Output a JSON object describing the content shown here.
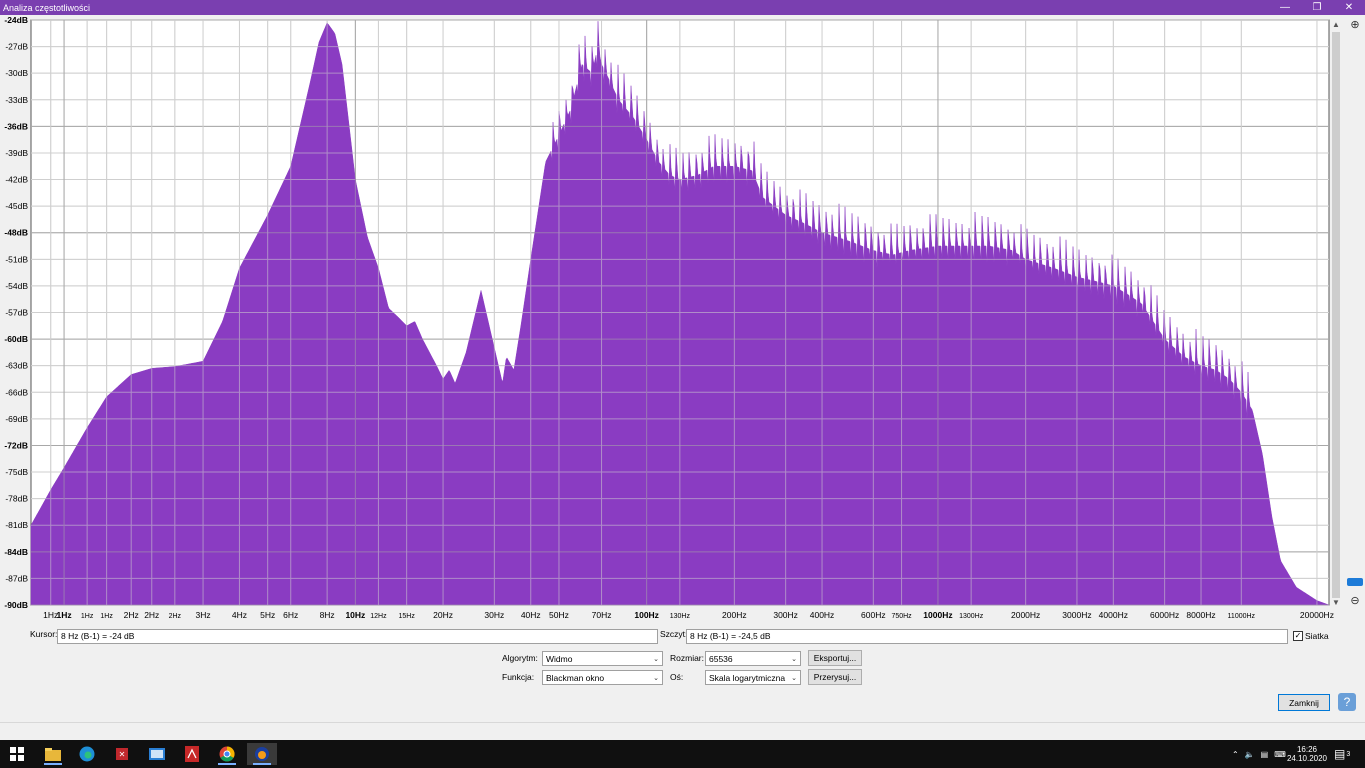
{
  "window": {
    "title": "Analiza częstotliwości",
    "minimize_icon": "minimize-icon",
    "restore_icon": "restore-icon",
    "close_icon": "close-icon"
  },
  "colors": {
    "title_bar": "#7a3fb0",
    "spectrum_fill": "#8a3cc2",
    "grid": "#c8c8c8",
    "plot_bg": "#ffffff"
  },
  "chart_data": {
    "type": "area",
    "title": "",
    "xlabel": "",
    "ylabel": "",
    "x_scale": "log",
    "xlim": [
      0.77,
      22000
    ],
    "ylim": [
      -90,
      -24
    ],
    "grid": true,
    "y_tick_labels": [
      "-24dB",
      "-27dB",
      "-30dB",
      "-33dB",
      "-36dB",
      "-39dB",
      "-42dB",
      "-45dB",
      "-48dB",
      "-51dB",
      "-54dB",
      "-57dB",
      "-60dB",
      "-63dB",
      "-66dB",
      "-69dB",
      "-72dB",
      "-75dB",
      "-78dB",
      "-81dB",
      "-84dB",
      "-87dB",
      "-90dB"
    ],
    "y_tick_values": [
      -24,
      -27,
      -30,
      -33,
      -36,
      -39,
      -42,
      -45,
      -48,
      -51,
      -54,
      -57,
      -60,
      -63,
      -66,
      -69,
      -72,
      -75,
      -78,
      -81,
      -84,
      -87,
      -90
    ],
    "y_bold_values": [
      -24,
      -36,
      -48,
      -60,
      -72,
      -84,
      -90
    ],
    "x_ticks": [
      {
        "label": "1Hz",
        "value": 0.9,
        "bold": false
      },
      {
        "label": "1Hz",
        "value": 1.0,
        "bold": true
      },
      {
        "label": "1Hz",
        "value": 1.2,
        "bold": false,
        "small": true
      },
      {
        "label": "1Hz",
        "value": 1.4,
        "bold": false,
        "small": true
      },
      {
        "label": "2Hz",
        "value": 1.7,
        "bold": false
      },
      {
        "label": "2Hz",
        "value": 2.0,
        "bold": false
      },
      {
        "label": "2Hz",
        "value": 2.4,
        "bold": false,
        "small": true
      },
      {
        "label": "3Hz",
        "value": 3.0,
        "bold": false
      },
      {
        "label": "4Hz",
        "value": 4.0,
        "bold": false
      },
      {
        "label": "5Hz",
        "value": 5.0,
        "bold": false
      },
      {
        "label": "6Hz",
        "value": 6.0,
        "bold": false
      },
      {
        "label": "8Hz",
        "value": 8.0,
        "bold": false
      },
      {
        "label": "10Hz",
        "value": 10,
        "bold": true
      },
      {
        "label": "12Hz",
        "value": 12,
        "bold": false,
        "small": true
      },
      {
        "label": "15Hz",
        "value": 15,
        "bold": false,
        "small": true
      },
      {
        "label": "20Hz",
        "value": 20,
        "bold": false
      },
      {
        "label": "30Hz",
        "value": 30,
        "bold": false
      },
      {
        "label": "40Hz",
        "value": 40,
        "bold": false
      },
      {
        "label": "50Hz",
        "value": 50,
        "bold": false
      },
      {
        "label": "70Hz",
        "value": 70,
        "bold": false
      },
      {
        "label": "100Hz",
        "value": 100,
        "bold": true
      },
      {
        "label": "130Hz",
        "value": 130,
        "bold": false,
        "small": true
      },
      {
        "label": "200Hz",
        "value": 200,
        "bold": false
      },
      {
        "label": "300Hz",
        "value": 300,
        "bold": false
      },
      {
        "label": "400Hz",
        "value": 400,
        "bold": false
      },
      {
        "label": "600Hz",
        "value": 600,
        "bold": false
      },
      {
        "label": "750Hz",
        "value": 750,
        "bold": false,
        "small": true
      },
      {
        "label": "1000Hz",
        "value": 1000,
        "bold": true
      },
      {
        "label": "1300Hz",
        "value": 1300,
        "bold": false,
        "small": true
      },
      {
        "label": "2000Hz",
        "value": 2000,
        "bold": false
      },
      {
        "label": "3000Hz",
        "value": 3000,
        "bold": false
      },
      {
        "label": "4000Hz",
        "value": 4000,
        "bold": false
      },
      {
        "label": "6000Hz",
        "value": 6000,
        "bold": false
      },
      {
        "label": "8000Hz",
        "value": 8000,
        "bold": false
      },
      {
        "label": "11000Hz",
        "value": 11000,
        "bold": false,
        "small": true
      },
      {
        "label": "20000Hz",
        "value": 20000,
        "bold": false
      }
    ],
    "series": [
      {
        "x": [
          0.77,
          0.9,
          1.0,
          1.2,
          1.4,
          1.7,
          2.0,
          2.4,
          3.0,
          3.5,
          4.0,
          5.0,
          6.0,
          7.0,
          7.5,
          8.0,
          8.5,
          9.0,
          10.0,
          11.0,
          12.0,
          13.0,
          14.0,
          15.0,
          16.0,
          17.0,
          19.0,
          20.0,
          21.0,
          22.0,
          24.0,
          27.0,
          30.0,
          32.0,
          33.0,
          35.0,
          37.0,
          40.0,
          45.0,
          50.0,
          55.0,
          60.0,
          65.0,
          68.0,
          70.0,
          75.0,
          80.0,
          90.0,
          100,
          110,
          120,
          130,
          150,
          170,
          200,
          230,
          250,
          300,
          350,
          400,
          450,
          500,
          600,
          700,
          800,
          1000,
          1200,
          1500,
          1800,
          2000,
          2500,
          3000,
          3500,
          4000,
          4500,
          5000,
          6000,
          7000,
          8000,
          9000,
          10000,
          11000,
          12000,
          13000,
          14000,
          15000,
          17000,
          20000,
          22000
        ],
        "y": [
          -81,
          -77,
          -74.5,
          -70,
          -66.5,
          -64,
          -63.3,
          -63.1,
          -62.5,
          -58,
          -52,
          -46,
          -40.5,
          -31,
          -26.5,
          -24.3,
          -25.5,
          -29,
          -42,
          -48.5,
          -52,
          -56.5,
          -57.5,
          -58.5,
          -58,
          -60,
          -63,
          -64.5,
          -63.5,
          -65,
          -61.5,
          -54.5,
          -61,
          -65,
          -62,
          -63.5,
          -58.5,
          -51,
          -40,
          -37,
          -34,
          -29,
          -30,
          -27,
          -29,
          -31,
          -33,
          -35,
          -37.5,
          -40,
          -41.5,
          -42,
          -41.5,
          -40.5,
          -40.5,
          -41,
          -44,
          -46,
          -47,
          -48,
          -48.5,
          -49,
          -50,
          -50.5,
          -50,
          -49.5,
          -49.5,
          -49.5,
          -50,
          -51,
          -52,
          -53,
          -53.5,
          -54,
          -55,
          -56,
          -60,
          -62,
          -63,
          -63.5,
          -64.5,
          -66,
          -68,
          -73,
          -80,
          -85,
          -88,
          -89.5,
          -90
        ]
      }
    ],
    "notes_peaks_hz": [
      70,
      100,
      200,
      1000,
      2000
    ]
  },
  "cursor": {
    "label": "Kursor:",
    "value": "8 Hz (B-1) = -24 dB"
  },
  "peak": {
    "label": "Szczyt:",
    "value": "8 Hz (B-1) = -24,5 dB"
  },
  "grid_checkbox": {
    "label": "Siatka",
    "checked": true
  },
  "controls": {
    "algorithm_label": "Algorytm:",
    "algorithm_value": "Widmo",
    "size_label": "Rozmiar:",
    "size_value": "65536",
    "export_label": "Eksportuj...",
    "function_label": "Funkcja:",
    "function_value": "Blackman okno",
    "axis_label": "Oś:",
    "axis_value": "Skala logarytmiczna",
    "redraw_label": "Przerysuj...",
    "close_label": "Zamknij",
    "help_icon": "help-icon"
  },
  "taskbar": {
    "time": "16:26",
    "date": "24.10.2020",
    "notification_count": "3",
    "apps": [
      "start-icon",
      "file-explorer-icon",
      "edge-icon",
      "app-red-icon",
      "mail-icon",
      "pdf-icon",
      "chrome-icon",
      "audacity-icon"
    ]
  }
}
